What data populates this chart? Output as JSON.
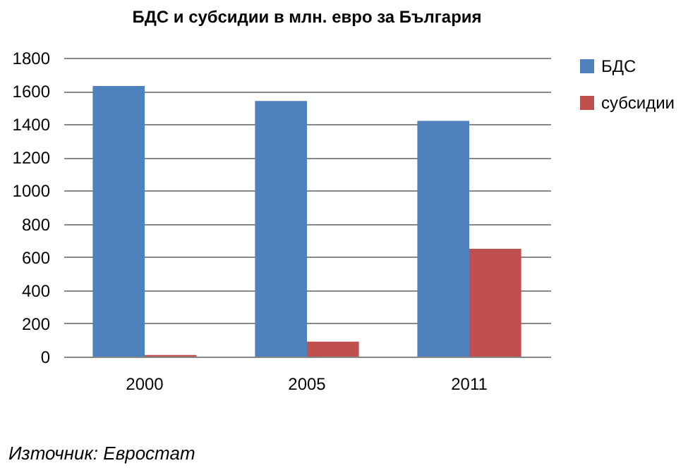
{
  "chart_data": {
    "type": "bar",
    "title": "БДС и субсидии в млн. евро за България",
    "categories": [
      "2000",
      "2005",
      "2011"
    ],
    "series": [
      {
        "name": "БДС",
        "color": "#4f81bd",
        "values": [
          1630,
          1540,
          1420
        ]
      },
      {
        "name": "субсидии",
        "color": "#c0504d",
        "values": [
          10,
          90,
          650
        ]
      }
    ],
    "ylim": [
      0,
      1800
    ],
    "yticks": [
      0,
      200,
      400,
      600,
      800,
      1000,
      1200,
      1400,
      1600,
      1800
    ],
    "grid": "y",
    "legend": "right",
    "annotations": [
      "Източник: Евростат"
    ]
  }
}
